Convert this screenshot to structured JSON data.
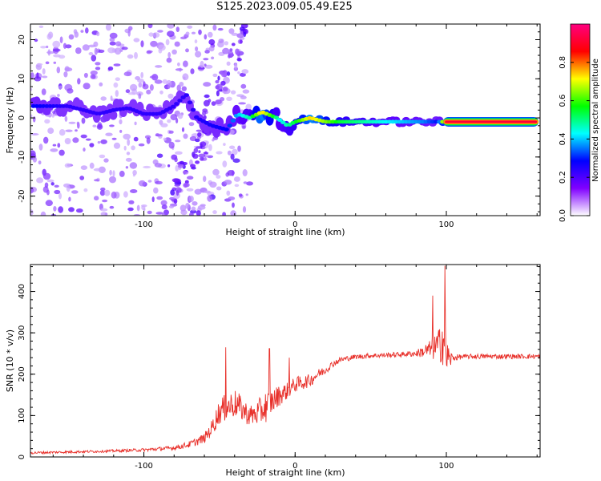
{
  "title": "S125.2023.009.05.49.E25",
  "chart_data": [
    {
      "type": "heatmap",
      "xlabel": "Height of straight line (km)",
      "ylabel": "Frequency (Hz)",
      "xlim": [
        -175,
        162
      ],
      "ylim": [
        -25,
        24
      ],
      "xticks": [
        -100,
        0,
        100
      ],
      "yticks": [
        -20,
        -10,
        0,
        10,
        20
      ],
      "colorbar": {
        "label": "Normalized spectral amplitude",
        "range": [
          0.0,
          1.0
        ],
        "ticks": [
          0.0,
          0.2,
          0.4,
          0.6,
          0.8
        ],
        "tick_labels": [
          "0.0",
          "0.2",
          "0.4",
          "0.6",
          "0.8"
        ],
        "colors": [
          "#ffffff",
          "#8000ff",
          "#0000ff",
          "#00ffff",
          "#00ff00",
          "#ffff00",
          "#ff0000",
          "#ff0080"
        ]
      },
      "ridge_frequency_hz": [
        [
          -170,
          3
        ],
        [
          -160,
          3
        ],
        [
          -150,
          3
        ],
        [
          -140,
          2
        ],
        [
          -130,
          1
        ],
        [
          -120,
          2
        ],
        [
          -110,
          2.5
        ],
        [
          -100,
          1
        ],
        [
          -90,
          1
        ],
        [
          -80,
          3
        ],
        [
          -72,
          6
        ],
        [
          -65,
          0
        ],
        [
          -55,
          -2
        ],
        [
          -45,
          -3
        ],
        [
          -38,
          1
        ],
        [
          -30,
          0
        ],
        [
          -22,
          1.5
        ],
        [
          -12,
          0
        ],
        [
          -5,
          -2
        ],
        [
          0,
          -1
        ],
        [
          10,
          0
        ],
        [
          20,
          -1
        ],
        [
          40,
          -1
        ],
        [
          60,
          -1
        ],
        [
          80,
          -1
        ],
        [
          90,
          -1
        ],
        [
          100,
          -1
        ],
        [
          130,
          -1
        ],
        [
          160,
          -1
        ]
      ],
      "ridge_amplitude": [
        [
          -170,
          0.35
        ],
        [
          -150,
          0.3
        ],
        [
          -120,
          0.3
        ],
        [
          -90,
          0.3
        ],
        [
          -70,
          0.3
        ],
        [
          -45,
          0.35
        ],
        [
          -30,
          0.5
        ],
        [
          -22,
          0.75
        ],
        [
          -10,
          0.45
        ],
        [
          0,
          0.55
        ],
        [
          10,
          0.75
        ],
        [
          30,
          0.55
        ],
        [
          60,
          0.45
        ],
        [
          85,
          0.4
        ],
        [
          95,
          0.35
        ],
        [
          100,
          0.95
        ],
        [
          160,
          0.95
        ]
      ]
    },
    {
      "type": "line",
      "xlabel": "Height of straight line (km)",
      "ylabel": "SNR (10 * v/v)",
      "xlim": [
        -175,
        162
      ],
      "ylim": [
        0,
        465
      ],
      "xticks": [
        -100,
        0,
        100
      ],
      "yticks": [
        0,
        100,
        200,
        300,
        400
      ],
      "color": "#e8302a",
      "x": [
        -175,
        -150,
        -125,
        -100,
        -80,
        -70,
        -60,
        -55,
        -50,
        -45,
        -40,
        -35,
        -30,
        -25,
        -20,
        -15,
        -10,
        -5,
        0,
        5,
        10,
        15,
        20,
        25,
        30,
        40,
        50,
        60,
        70,
        80,
        85,
        90,
        95,
        98,
        100,
        102,
        105,
        110,
        120,
        140,
        162
      ],
      "y": [
        10,
        12,
        14,
        17,
        22,
        30,
        45,
        70,
        110,
        120,
        130,
        115,
        100,
        105,
        120,
        135,
        150,
        160,
        175,
        180,
        185,
        200,
        210,
        225,
        235,
        242,
        245,
        246,
        248,
        250,
        255,
        260,
        270,
        290,
        250,
        235,
        240,
        242,
        243,
        243,
        243
      ],
      "noise": [
        3,
        3,
        3,
        4,
        5,
        8,
        12,
        20,
        30,
        35,
        35,
        30,
        25,
        30,
        40,
        30,
        25,
        20,
        18,
        18,
        15,
        12,
        10,
        8,
        7,
        6,
        6,
        6,
        6,
        8,
        15,
        25,
        40,
        70,
        60,
        25,
        8,
        6,
        6,
        6,
        6
      ],
      "peaks": [
        [
          -46,
          265
        ],
        [
          -17,
          262
        ],
        [
          -4,
          240
        ],
        [
          91,
          390
        ],
        [
          99,
          462
        ]
      ]
    }
  ]
}
